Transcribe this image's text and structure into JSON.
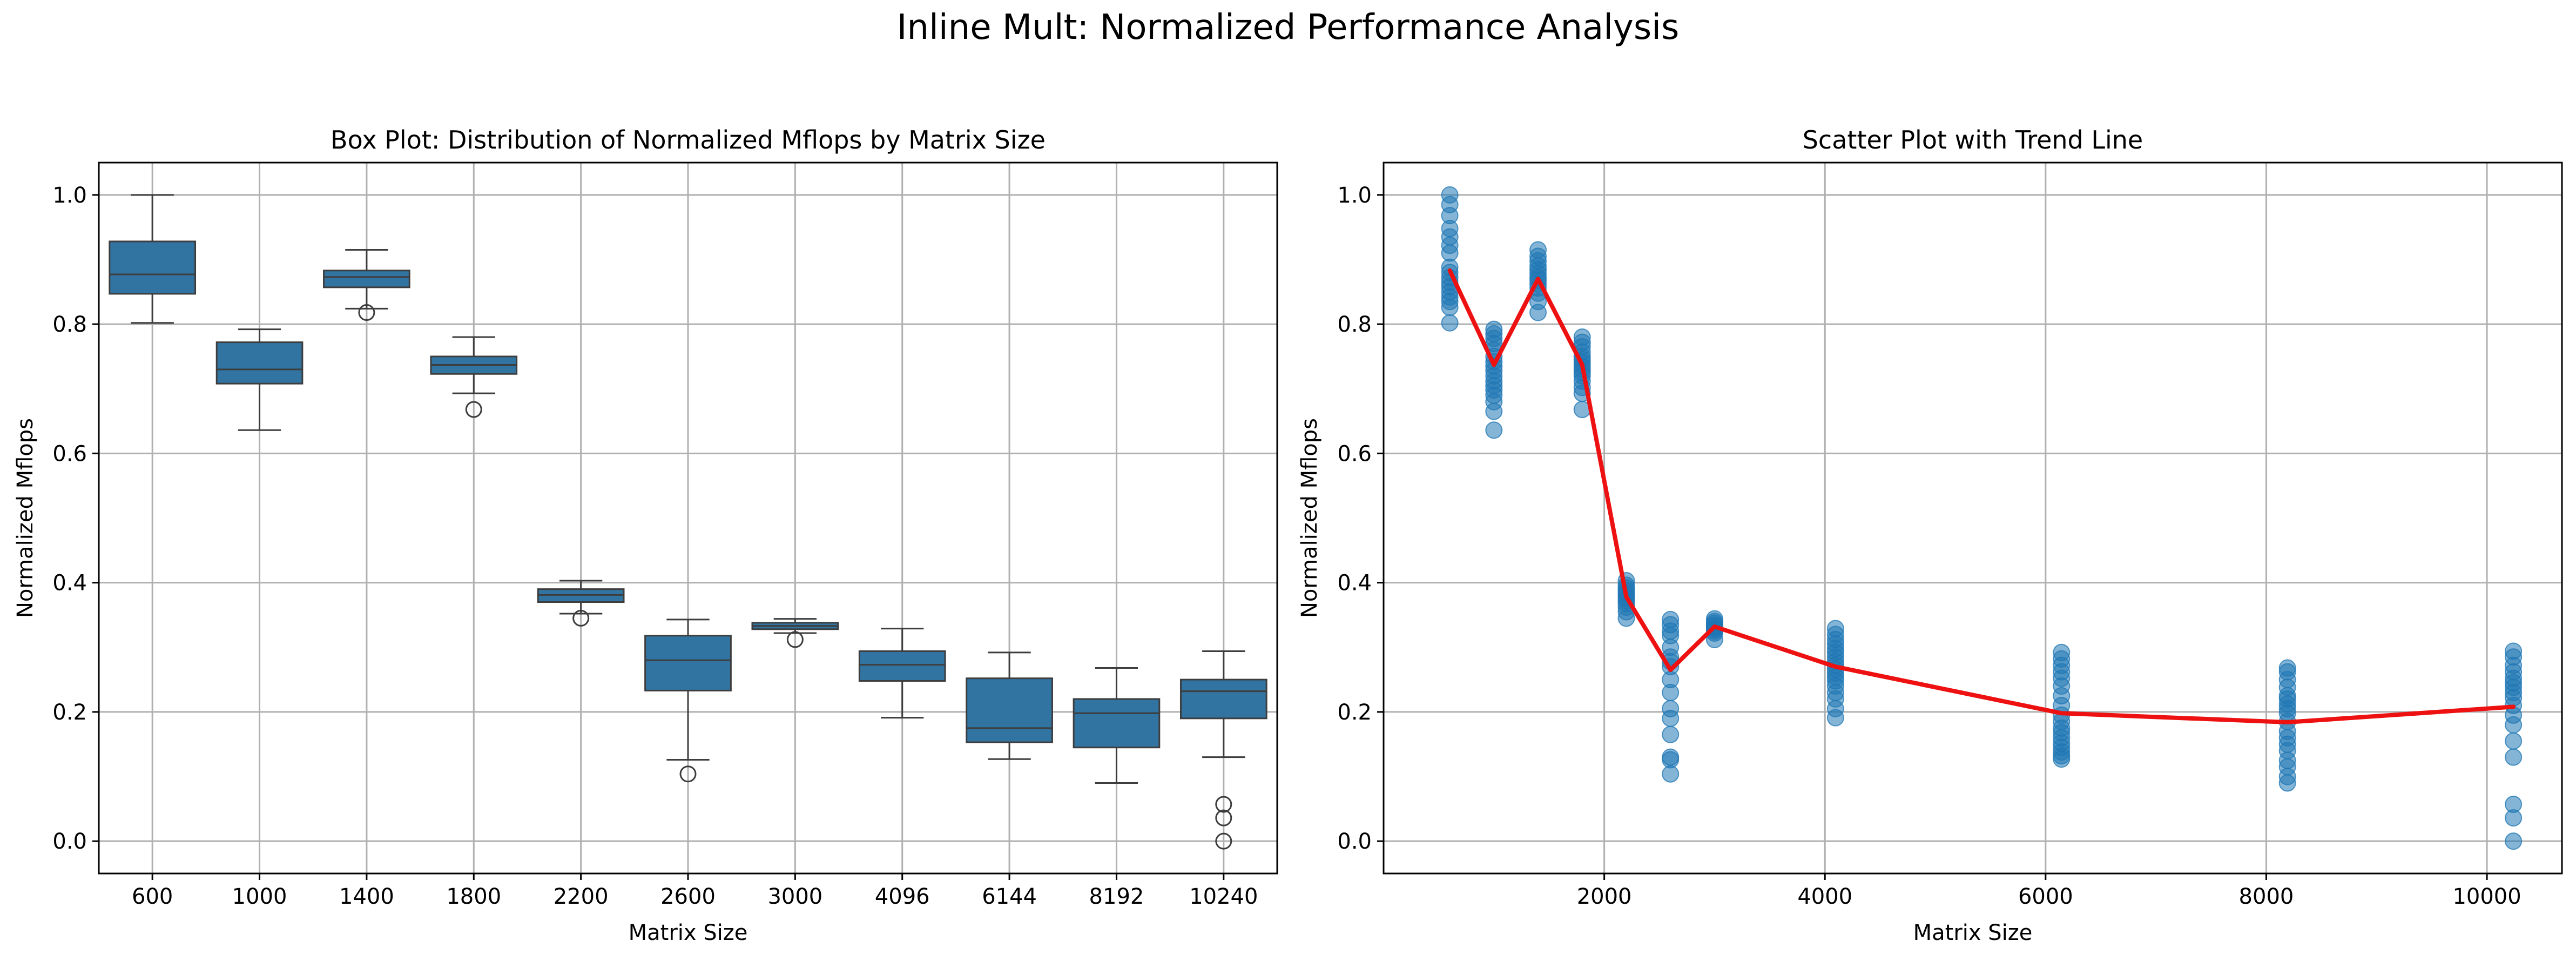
{
  "figure": {
    "title": "Inline Mult: Normalized Performance Analysis"
  },
  "chart_data": [
    {
      "type": "box",
      "title": "Box Plot: Distribution of Normalized Mflops by Matrix Size",
      "xlabel": "Matrix Size",
      "ylabel": "Normalized Mflops",
      "ylim": [
        -0.05,
        1.05
      ],
      "yticks": [
        0.0,
        0.2,
        0.4,
        0.6,
        0.8,
        1.0
      ],
      "grid": true,
      "box_color": "#3274a1",
      "categories": [
        "600",
        "1000",
        "1400",
        "1800",
        "2200",
        "2600",
        "3000",
        "4096",
        "6144",
        "8192",
        "10240"
      ],
      "boxes": [
        {
          "category": "600",
          "whisker_low": 0.802,
          "q1": 0.847,
          "median": 0.877,
          "q3": 0.928,
          "whisker_high": 1.0,
          "outliers": []
        },
        {
          "category": "1000",
          "whisker_low": 0.636,
          "q1": 0.708,
          "median": 0.73,
          "q3": 0.772,
          "whisker_high": 0.792,
          "outliers": []
        },
        {
          "category": "1400",
          "whisker_low": 0.824,
          "q1": 0.857,
          "median": 0.873,
          "q3": 0.883,
          "whisker_high": 0.915,
          "outliers": [
            0.818
          ]
        },
        {
          "category": "1800",
          "whisker_low": 0.693,
          "q1": 0.723,
          "median": 0.737,
          "q3": 0.75,
          "whisker_high": 0.78,
          "outliers": [
            0.668
          ]
        },
        {
          "category": "2200",
          "whisker_low": 0.352,
          "q1": 0.37,
          "median": 0.381,
          "q3": 0.39,
          "whisker_high": 0.403,
          "outliers": [
            0.345
          ]
        },
        {
          "category": "2600",
          "whisker_low": 0.126,
          "q1": 0.233,
          "median": 0.28,
          "q3": 0.318,
          "whisker_high": 0.343,
          "outliers": [
            0.104
          ]
        },
        {
          "category": "3000",
          "whisker_low": 0.322,
          "q1": 0.328,
          "median": 0.333,
          "q3": 0.338,
          "whisker_high": 0.344,
          "outliers": [
            0.312
          ]
        },
        {
          "category": "4096",
          "whisker_low": 0.191,
          "q1": 0.248,
          "median": 0.273,
          "q3": 0.294,
          "whisker_high": 0.329,
          "outliers": []
        },
        {
          "category": "6144",
          "whisker_low": 0.127,
          "q1": 0.153,
          "median": 0.175,
          "q3": 0.252,
          "whisker_high": 0.292,
          "outliers": []
        },
        {
          "category": "8192",
          "whisker_low": 0.09,
          "q1": 0.145,
          "median": 0.198,
          "q3": 0.22,
          "whisker_high": 0.268,
          "outliers": []
        },
        {
          "category": "10240",
          "whisker_low": 0.13,
          "q1": 0.19,
          "median": 0.232,
          "q3": 0.25,
          "whisker_high": 0.294,
          "outliers": [
            0.057,
            0.036,
            0.0
          ]
        }
      ]
    },
    {
      "type": "scatter",
      "title": "Scatter Plot with Trend Line",
      "xlabel": "Matrix Size",
      "ylabel": "Normalized Mflops",
      "xlim": [
        0,
        10680
      ],
      "ylim": [
        -0.05,
        1.05
      ],
      "xticks": [
        2000,
        4000,
        6000,
        8000,
        10000
      ],
      "yticks": [
        0.0,
        0.2,
        0.4,
        0.6,
        0.8,
        1.0
      ],
      "grid": true,
      "point_color": "#1f77b4",
      "trend_color": "#ee1111",
      "points": [
        {
          "x": 600,
          "y": [
            1.0,
            0.985,
            0.968,
            0.948,
            0.935,
            0.922,
            0.91,
            0.888,
            0.88,
            0.872,
            0.865,
            0.858,
            0.85,
            0.842,
            0.835,
            0.826,
            0.802
          ]
        },
        {
          "x": 1000,
          "y": [
            0.792,
            0.785,
            0.778,
            0.77,
            0.76,
            0.75,
            0.742,
            0.735,
            0.728,
            0.72,
            0.712,
            0.705,
            0.698,
            0.69,
            0.68,
            0.665,
            0.636
          ]
        },
        {
          "x": 1400,
          "y": [
            0.915,
            0.905,
            0.898,
            0.89,
            0.884,
            0.878,
            0.872,
            0.868,
            0.862,
            0.856,
            0.848,
            0.835,
            0.818
          ]
        },
        {
          "x": 1800,
          "y": [
            0.78,
            0.772,
            0.765,
            0.757,
            0.75,
            0.745,
            0.74,
            0.735,
            0.73,
            0.725,
            0.72,
            0.712,
            0.702,
            0.693,
            0.668
          ]
        },
        {
          "x": 2200,
          "y": [
            0.403,
            0.396,
            0.392,
            0.388,
            0.384,
            0.38,
            0.376,
            0.372,
            0.368,
            0.362,
            0.355,
            0.345
          ]
        },
        {
          "x": 2600,
          "y": [
            0.343,
            0.335,
            0.325,
            0.318,
            0.3,
            0.285,
            0.278,
            0.27,
            0.25,
            0.23,
            0.205,
            0.19,
            0.165,
            0.13,
            0.126,
            0.104
          ]
        },
        {
          "x": 3000,
          "y": [
            0.344,
            0.34,
            0.337,
            0.334,
            0.332,
            0.33,
            0.328,
            0.325,
            0.322,
            0.312
          ]
        },
        {
          "x": 4096,
          "y": [
            0.329,
            0.32,
            0.312,
            0.305,
            0.298,
            0.292,
            0.285,
            0.278,
            0.272,
            0.266,
            0.26,
            0.254,
            0.248,
            0.24,
            0.23,
            0.22,
            0.205,
            0.191
          ]
        },
        {
          "x": 6144,
          "y": [
            0.292,
            0.282,
            0.272,
            0.262,
            0.252,
            0.24,
            0.225,
            0.21,
            0.195,
            0.185,
            0.175,
            0.168,
            0.16,
            0.152,
            0.145,
            0.138,
            0.132,
            0.127
          ]
        },
        {
          "x": 8192,
          "y": [
            0.268,
            0.262,
            0.25,
            0.238,
            0.225,
            0.22,
            0.212,
            0.205,
            0.198,
            0.185,
            0.17,
            0.16,
            0.15,
            0.14,
            0.125,
            0.115,
            0.1,
            0.09
          ]
        },
        {
          "x": 10240,
          "y": [
            0.294,
            0.285,
            0.272,
            0.262,
            0.252,
            0.245,
            0.238,
            0.23,
            0.222,
            0.21,
            0.195,
            0.18,
            0.155,
            0.13,
            0.057,
            0.036,
            0.0
          ]
        }
      ],
      "trend": {
        "x": [
          600,
          1000,
          1400,
          1800,
          2200,
          2600,
          3000,
          4096,
          6144,
          8192,
          10240
        ],
        "y": [
          0.883,
          0.737,
          0.87,
          0.737,
          0.378,
          0.265,
          0.332,
          0.27,
          0.198,
          0.184,
          0.208
        ]
      }
    }
  ]
}
